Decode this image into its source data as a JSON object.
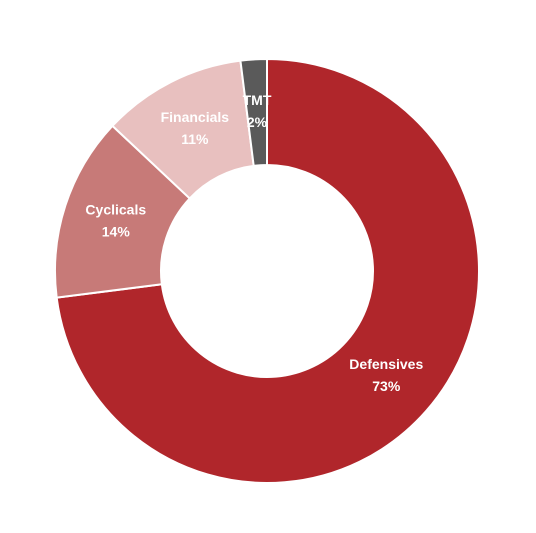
{
  "chart_data": {
    "type": "donut",
    "categories": [
      "Defensives",
      "Cyclicals",
      "Financials",
      "TMT"
    ],
    "values": [
      73,
      14,
      11,
      2
    ],
    "value_labels": [
      "73%",
      "14%",
      "11%",
      "2%"
    ],
    "colors": [
      "#b0262b",
      "#c77a78",
      "#e8c0bf",
      "#5a5a5a"
    ]
  }
}
